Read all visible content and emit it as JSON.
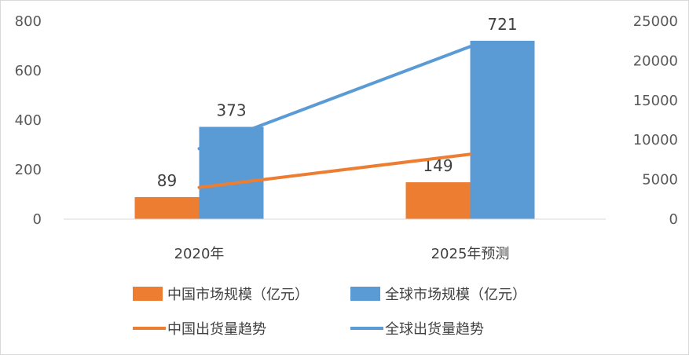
{
  "chart_data": {
    "type": "bar",
    "categories": [
      "2020年",
      "2025年预测"
    ],
    "series": [
      {
        "name": "中国市场规模（亿元）",
        "kind": "bar",
        "axis": "left",
        "color": "#ed7d31",
        "values": [
          89,
          149
        ],
        "labels": [
          "89",
          "149"
        ]
      },
      {
        "name": "全球市场规模（亿元）",
        "kind": "bar",
        "axis": "left",
        "color": "#5b9bd5",
        "values": [
          373,
          721
        ],
        "labels": [
          "373",
          "721"
        ]
      },
      {
        "name": "中国出货量趋势",
        "kind": "line",
        "axis": "right",
        "color": "#ed7d31",
        "values": [
          4000,
          8200
        ]
      },
      {
        "name": "全球出货量趋势",
        "kind": "line",
        "axis": "right",
        "color": "#5b9bd5",
        "values": [
          8900,
          21800
        ]
      }
    ],
    "y_left": {
      "min": 0,
      "max": 800,
      "ticks": [
        "0",
        "200",
        "400",
        "600",
        "800"
      ]
    },
    "y_right": {
      "min": 0,
      "max": 25000,
      "ticks": [
        "0",
        "5000",
        "10000",
        "15000",
        "20000",
        "25000"
      ]
    },
    "grid": false,
    "legend_position": "bottom",
    "title": "",
    "xlabel": "",
    "ylabel": ""
  }
}
